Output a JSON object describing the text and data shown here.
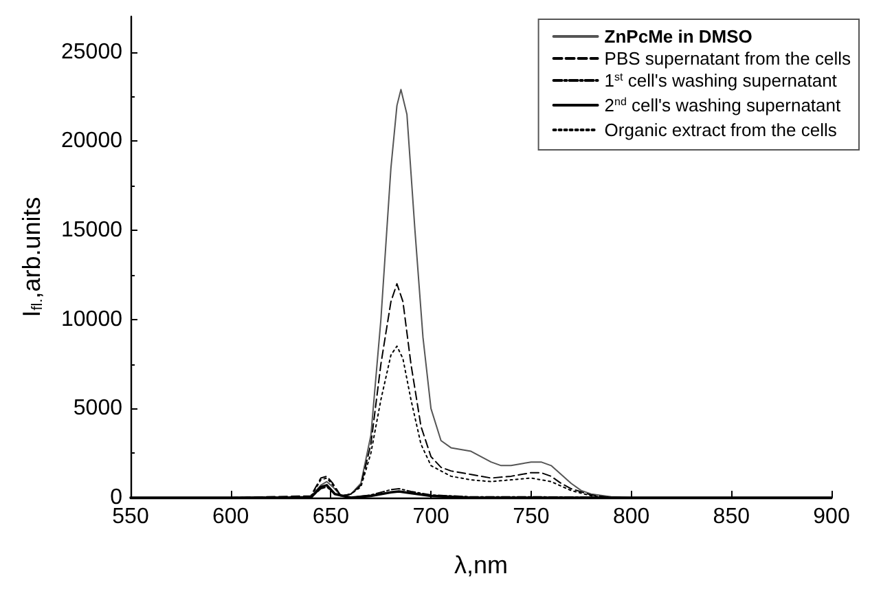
{
  "chart_data": {
    "type": "line",
    "xlabel": "λ,nm",
    "ylabel": "I$_{fl.}$,arb.units",
    "xlim": [
      550,
      900
    ],
    "xticks": [
      550,
      600,
      650,
      700,
      750,
      800,
      850,
      900
    ],
    "ylim": [
      0,
      27000
    ],
    "yticks": [
      0,
      5000,
      10000,
      15000,
      20000,
      25000
    ],
    "grid": false,
    "legend": "top right",
    "marker": "none",
    "series": [
      {
        "name": "ZnPcMe in DMSO",
        "color": "#555555",
        "line_style": "solid",
        "x": [
          550,
          600,
          640,
          645,
          648,
          651,
          655,
          660,
          665,
          670,
          675,
          680,
          683,
          685,
          688,
          692,
          696,
          700,
          705,
          710,
          715,
          720,
          725,
          730,
          735,
          740,
          745,
          750,
          755,
          760,
          765,
          770,
          775,
          780,
          790,
          800,
          850,
          900
        ],
        "values": [
          0,
          0,
          50,
          700,
          900,
          600,
          100,
          200,
          800,
          3500,
          10000,
          18500,
          22000,
          22900,
          21500,
          15000,
          9000,
          5000,
          3200,
          2800,
          2700,
          2600,
          2300,
          2000,
          1800,
          1800,
          1900,
          2000,
          2000,
          1800,
          1300,
          800,
          400,
          200,
          50,
          0,
          0,
          0
        ]
      },
      {
        "name": "PBS supernatant from the cells",
        "color": "#000000",
        "line_style": "dashed",
        "x": [
          550,
          600,
          640,
          645,
          648,
          651,
          655,
          660,
          665,
          670,
          675,
          680,
          683,
          686,
          690,
          695,
          700,
          705,
          710,
          720,
          730,
          740,
          750,
          755,
          760,
          765,
          770,
          780,
          790,
          850,
          900
        ],
        "values": [
          0,
          0,
          100,
          1100,
          1200,
          800,
          100,
          200,
          700,
          3000,
          7500,
          11000,
          12000,
          11000,
          7500,
          4000,
          2300,
          1700,
          1500,
          1300,
          1100,
          1200,
          1400,
          1400,
          1200,
          800,
          500,
          150,
          0,
          0,
          0
        ]
      },
      {
        "name": "1$^{st}$ cell's washing supernatant",
        "color": "#000000",
        "line_style": "dashdot",
        "x": [
          550,
          600,
          640,
          645,
          648,
          652,
          660,
          670,
          680,
          684,
          690,
          700,
          720,
          750,
          800,
          850,
          900
        ],
        "values": [
          0,
          0,
          0,
          500,
          600,
          200,
          0,
          150,
          450,
          500,
          350,
          150,
          50,
          50,
          0,
          0,
          0
        ]
      },
      {
        "name": "2$^{nd}$ cell's washing supernatant",
        "color": "#000000",
        "line_style": "solid",
        "x": [
          550,
          600,
          640,
          645,
          648,
          652,
          660,
          670,
          680,
          684,
          690,
          700,
          720,
          800,
          900
        ],
        "values": [
          0,
          0,
          0,
          600,
          700,
          200,
          0,
          100,
          300,
          350,
          250,
          100,
          0,
          0,
          0
        ]
      },
      {
        "name": "Organic extract from the cells",
        "color": "#000000",
        "line_style": "dotted",
        "x": [
          550,
          600,
          640,
          645,
          648,
          651,
          655,
          660,
          665,
          670,
          675,
          680,
          683,
          686,
          690,
          695,
          700,
          710,
          720,
          730,
          740,
          750,
          760,
          770,
          780,
          790,
          850,
          900
        ],
        "values": [
          0,
          0,
          50,
          1000,
          1100,
          700,
          100,
          200,
          600,
          2500,
          5500,
          8000,
          8500,
          7800,
          5500,
          3000,
          1800,
          1200,
          1000,
          900,
          1000,
          1100,
          900,
          400,
          100,
          0,
          0,
          0
        ]
      }
    ]
  }
}
